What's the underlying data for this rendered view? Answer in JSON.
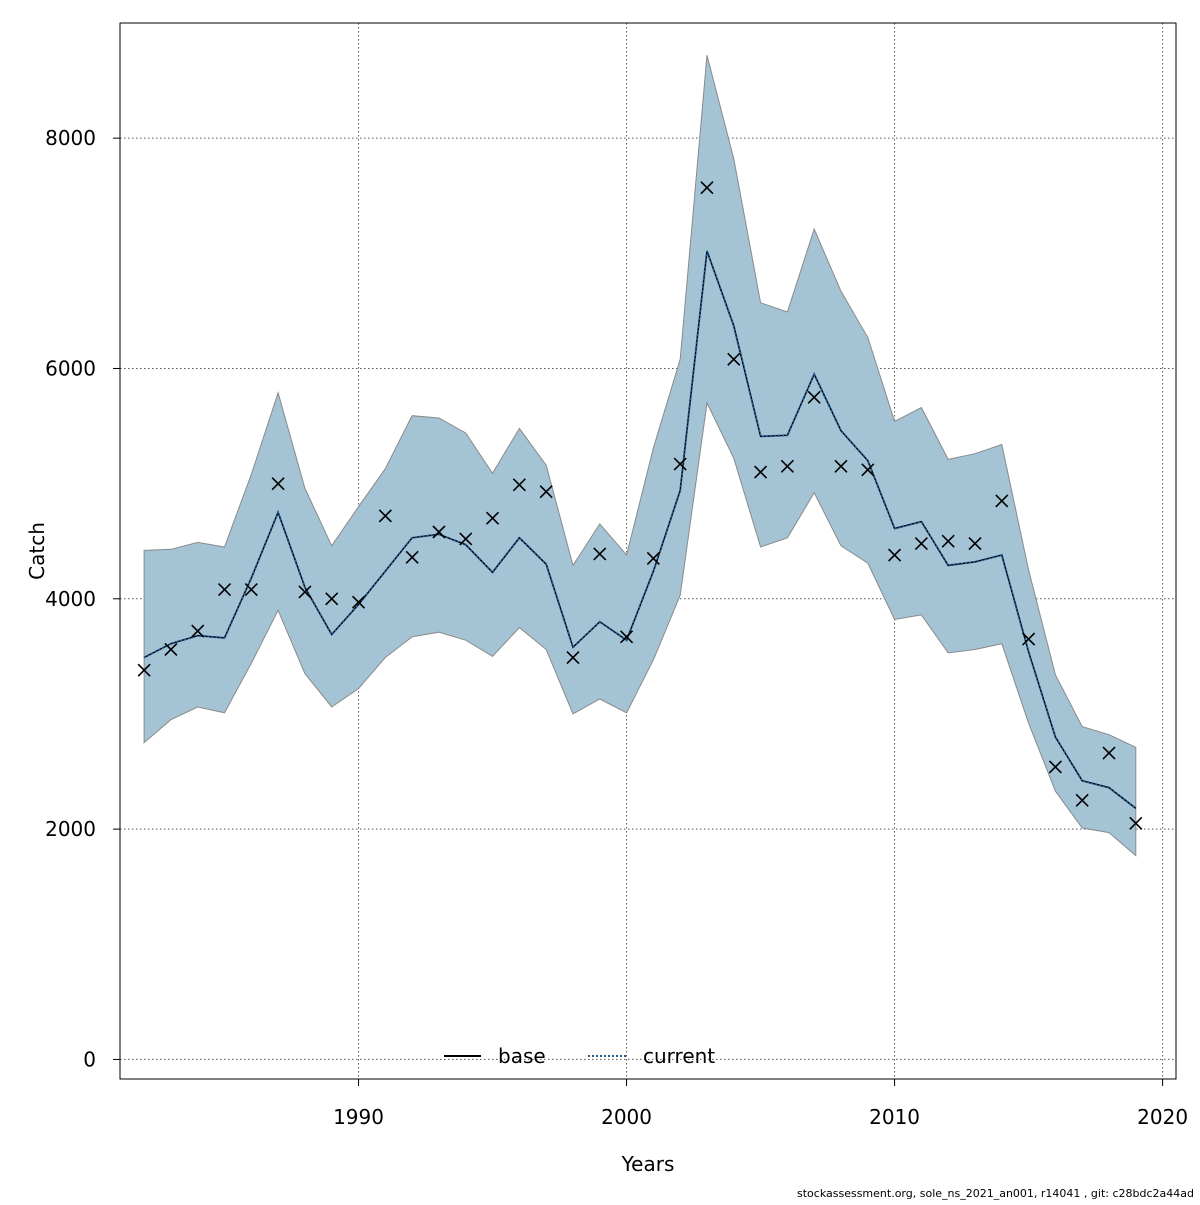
{
  "chart_data": {
    "type": "line",
    "xlabel": "Years",
    "ylabel": "Catch",
    "xlim": [
      1981.1,
      2020.5
    ],
    "ylim": [
      -170,
      9000
    ],
    "x_ticks": [
      1990,
      2000,
      2010,
      2020
    ],
    "x_tick_labels": [
      "1990",
      "2000",
      "2010",
      "2020"
    ],
    "y_ticks": [
      0,
      2000,
      4000,
      6000,
      8000
    ],
    "y_tick_labels": [
      "0",
      "2000",
      "4000",
      "6000",
      "8000"
    ],
    "grid": true,
    "legend_position": "bottom-center",
    "legend": [
      {
        "label": "base",
        "style": "solid",
        "color": "#000000"
      },
      {
        "label": "current",
        "style": "dotted",
        "color": "#1f5c99"
      }
    ],
    "band_color": "#a4c3d4",
    "years": [
      1982,
      1983,
      1984,
      1985,
      1986,
      1987,
      1988,
      1989,
      1990,
      1991,
      1992,
      1993,
      1994,
      1995,
      1996,
      1997,
      1998,
      1999,
      2000,
      2001,
      2002,
      2003,
      2004,
      2005,
      2006,
      2007,
      2008,
      2009,
      2010,
      2011,
      2012,
      2013,
      2014,
      2015,
      2016,
      2017,
      2018,
      2019
    ],
    "observed": [
      3380,
      3560,
      3720,
      4080,
      4080,
      5000,
      4060,
      4000,
      3970,
      4720,
      4360,
      4580,
      4520,
      4700,
      4990,
      4930,
      3490,
      4390,
      3670,
      4350,
      5170,
      7570,
      6080,
      5100,
      5150,
      5750,
      5150,
      5120,
      4380,
      4480,
      4500,
      4480,
      4850,
      3650,
      2540,
      2250,
      2660,
      2050
    ],
    "series": [
      {
        "name": "base",
        "values": [
          3490,
          3610,
          3680,
          3660,
          4180,
          4750,
          4100,
          3690,
          3950,
          4240,
          4530,
          4560,
          4470,
          4230,
          4530,
          4300,
          3580,
          3800,
          3640,
          4240,
          4940,
          7020,
          6370,
          5410,
          5420,
          5950,
          5460,
          5200,
          4610,
          4670,
          4290,
          4320,
          4380,
          3540,
          2800,
          2420,
          2360,
          2180
        ]
      },
      {
        "name": "current",
        "values": [
          3490,
          3610,
          3680,
          3660,
          4180,
          4750,
          4100,
          3690,
          3950,
          4240,
          4530,
          4560,
          4470,
          4230,
          4530,
          4300,
          3580,
          3800,
          3640,
          4240,
          4940,
          7020,
          6370,
          5410,
          5420,
          5950,
          5460,
          5200,
          4610,
          4670,
          4290,
          4320,
          4380,
          3540,
          2800,
          2420,
          2360,
          2180
        ]
      }
    ],
    "band_upper": [
      4420,
      4430,
      4490,
      4450,
      5080,
      5790,
      4960,
      4460,
      4800,
      5130,
      5590,
      5570,
      5440,
      5090,
      5480,
      5160,
      4290,
      4650,
      4380,
      5310,
      6080,
      8720,
      7820,
      6570,
      6490,
      7210,
      6670,
      6270,
      5540,
      5660,
      5210,
      5260,
      5340,
      4250,
      3340,
      2890,
      2820,
      2710
    ],
    "band_lower": [
      2750,
      2950,
      3060,
      3010,
      3440,
      3900,
      3350,
      3060,
      3220,
      3490,
      3670,
      3710,
      3640,
      3500,
      3750,
      3560,
      3000,
      3130,
      3010,
      3470,
      4030,
      5700,
      5220,
      4450,
      4530,
      4920,
      4460,
      4310,
      3820,
      3860,
      3530,
      3560,
      3610,
      2920,
      2330,
      2010,
      1970,
      1770
    ]
  },
  "footer_text": "stockassessment.org, sole_ns_2021_an001, r14041 , git: c28bdc2a44ad"
}
